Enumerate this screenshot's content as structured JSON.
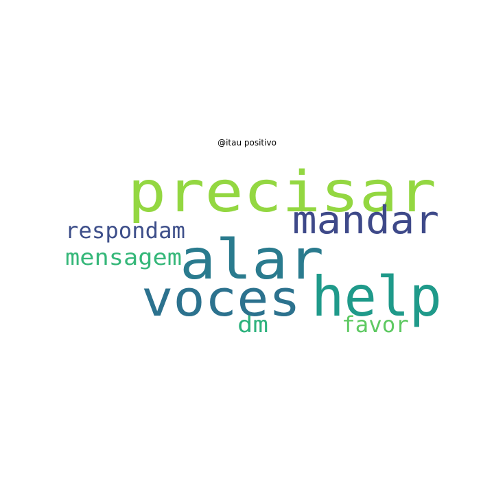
{
  "title": "@itau positivo",
  "words": [
    {
      "text": "precisar",
      "color": "#93d741"
    },
    {
      "text": "mandar",
      "color": "#3e4989"
    },
    {
      "text": "respondam",
      "color": "#3e4f8a"
    },
    {
      "text": "alar",
      "color": "#2a7b8e"
    },
    {
      "text": "mensagem",
      "color": "#35b779"
    },
    {
      "text": "voces",
      "color": "#2c728e"
    },
    {
      "text": "help",
      "color": "#1f9a8a"
    },
    {
      "text": "dm",
      "color": "#2db27d"
    },
    {
      "text": "favor",
      "color": "#5ec962"
    }
  ]
}
